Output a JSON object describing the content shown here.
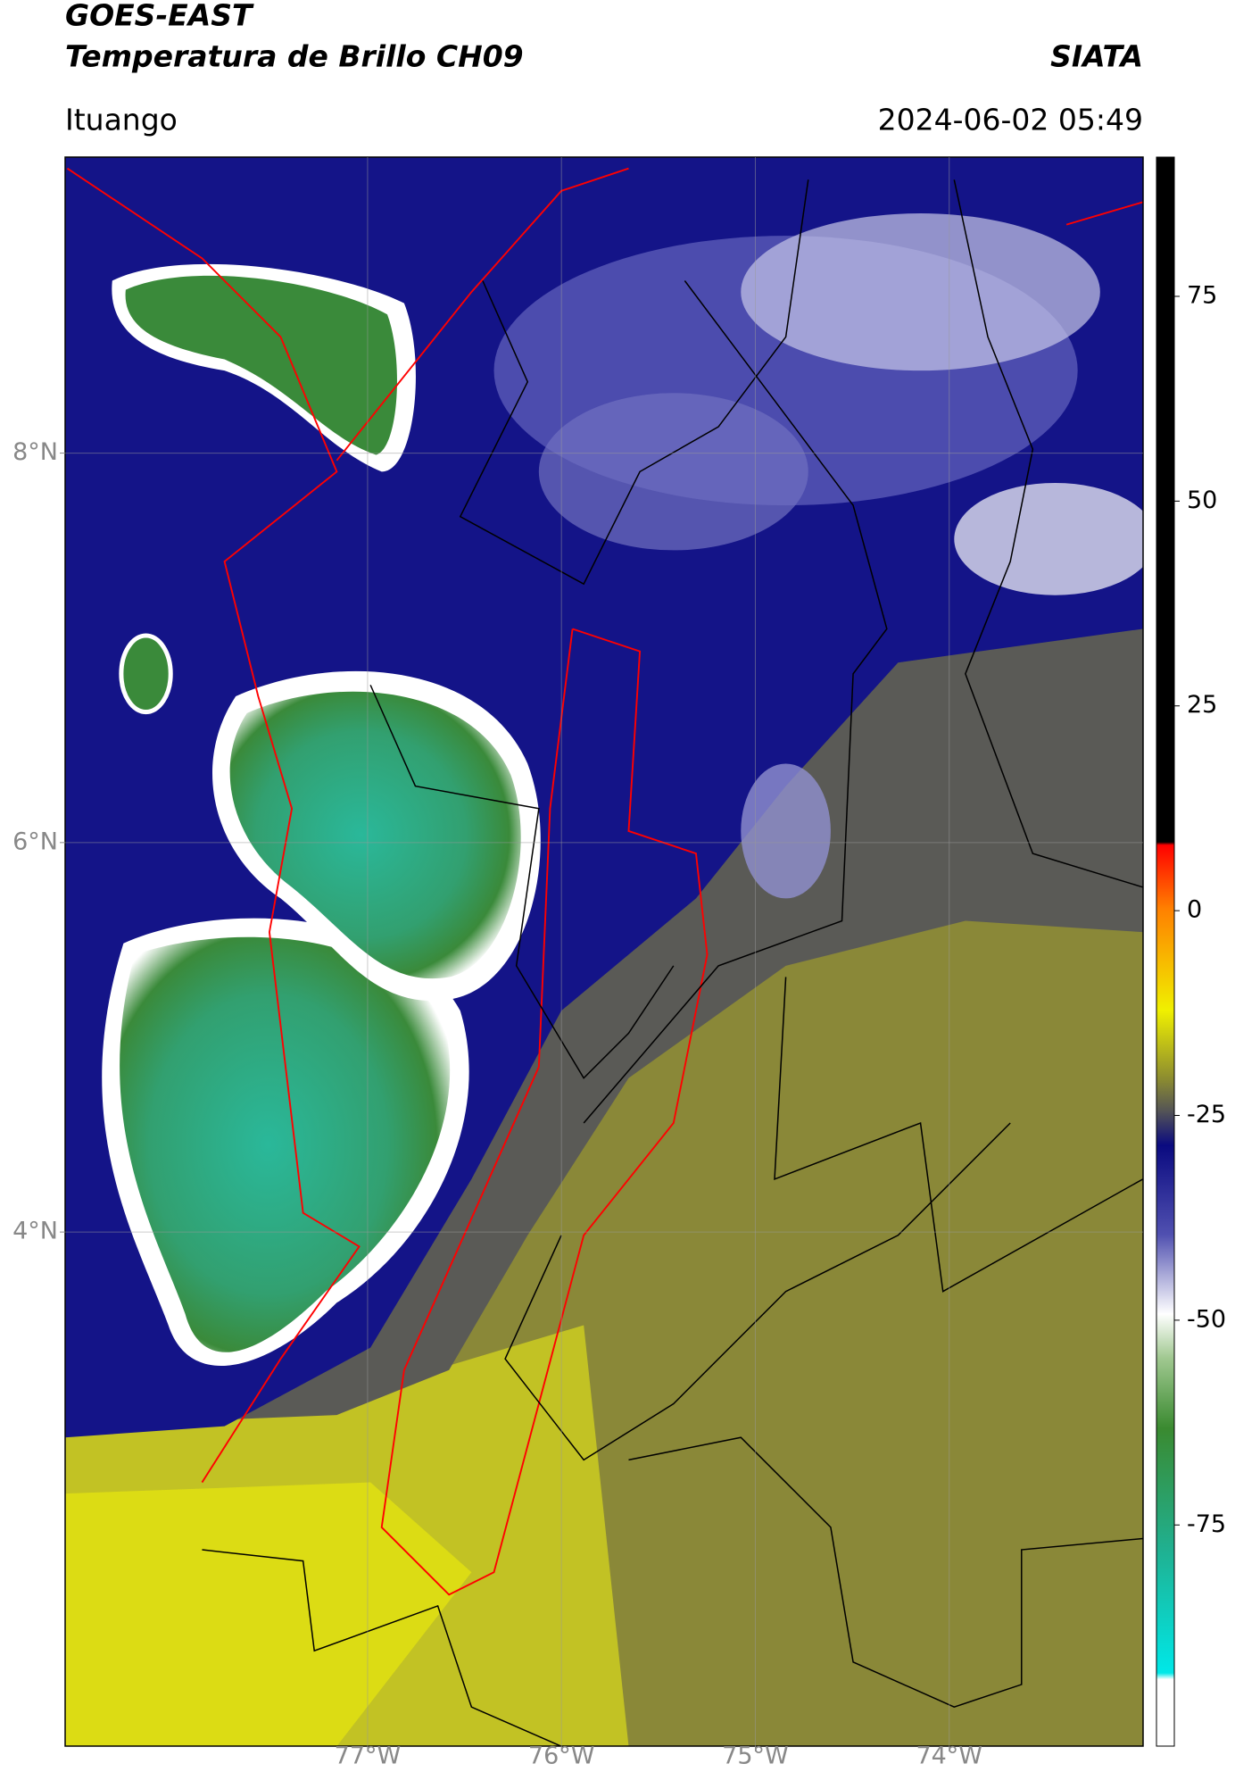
{
  "header": {
    "title": "GOES-EAST",
    "subtitle": "Temperatura de Brillo CH09",
    "brand": "SIATA",
    "region": "Ituango",
    "timestamp": "2024-06-02 05:49"
  },
  "chart_data": {
    "type": "map",
    "xlim": [
      -78.56,
      -73.0
    ],
    "ylim": [
      1.36,
      9.52
    ],
    "xticks": [
      {
        "value": -77,
        "label": "77°W"
      },
      {
        "value": -76,
        "label": "76°W"
      },
      {
        "value": -75,
        "label": "75°W"
      },
      {
        "value": -74,
        "label": "74°W"
      }
    ],
    "yticks": [
      {
        "value": 8,
        "label": "8°N"
      },
      {
        "value": 6,
        "label": "6°N"
      },
      {
        "value": 4,
        "label": "4°N"
      }
    ],
    "grid": true,
    "colorbar": {
      "lim": [
        -102,
        92
      ],
      "ticks": [
        75,
        50,
        25,
        0,
        -25,
        -50,
        -75
      ]
    }
  }
}
